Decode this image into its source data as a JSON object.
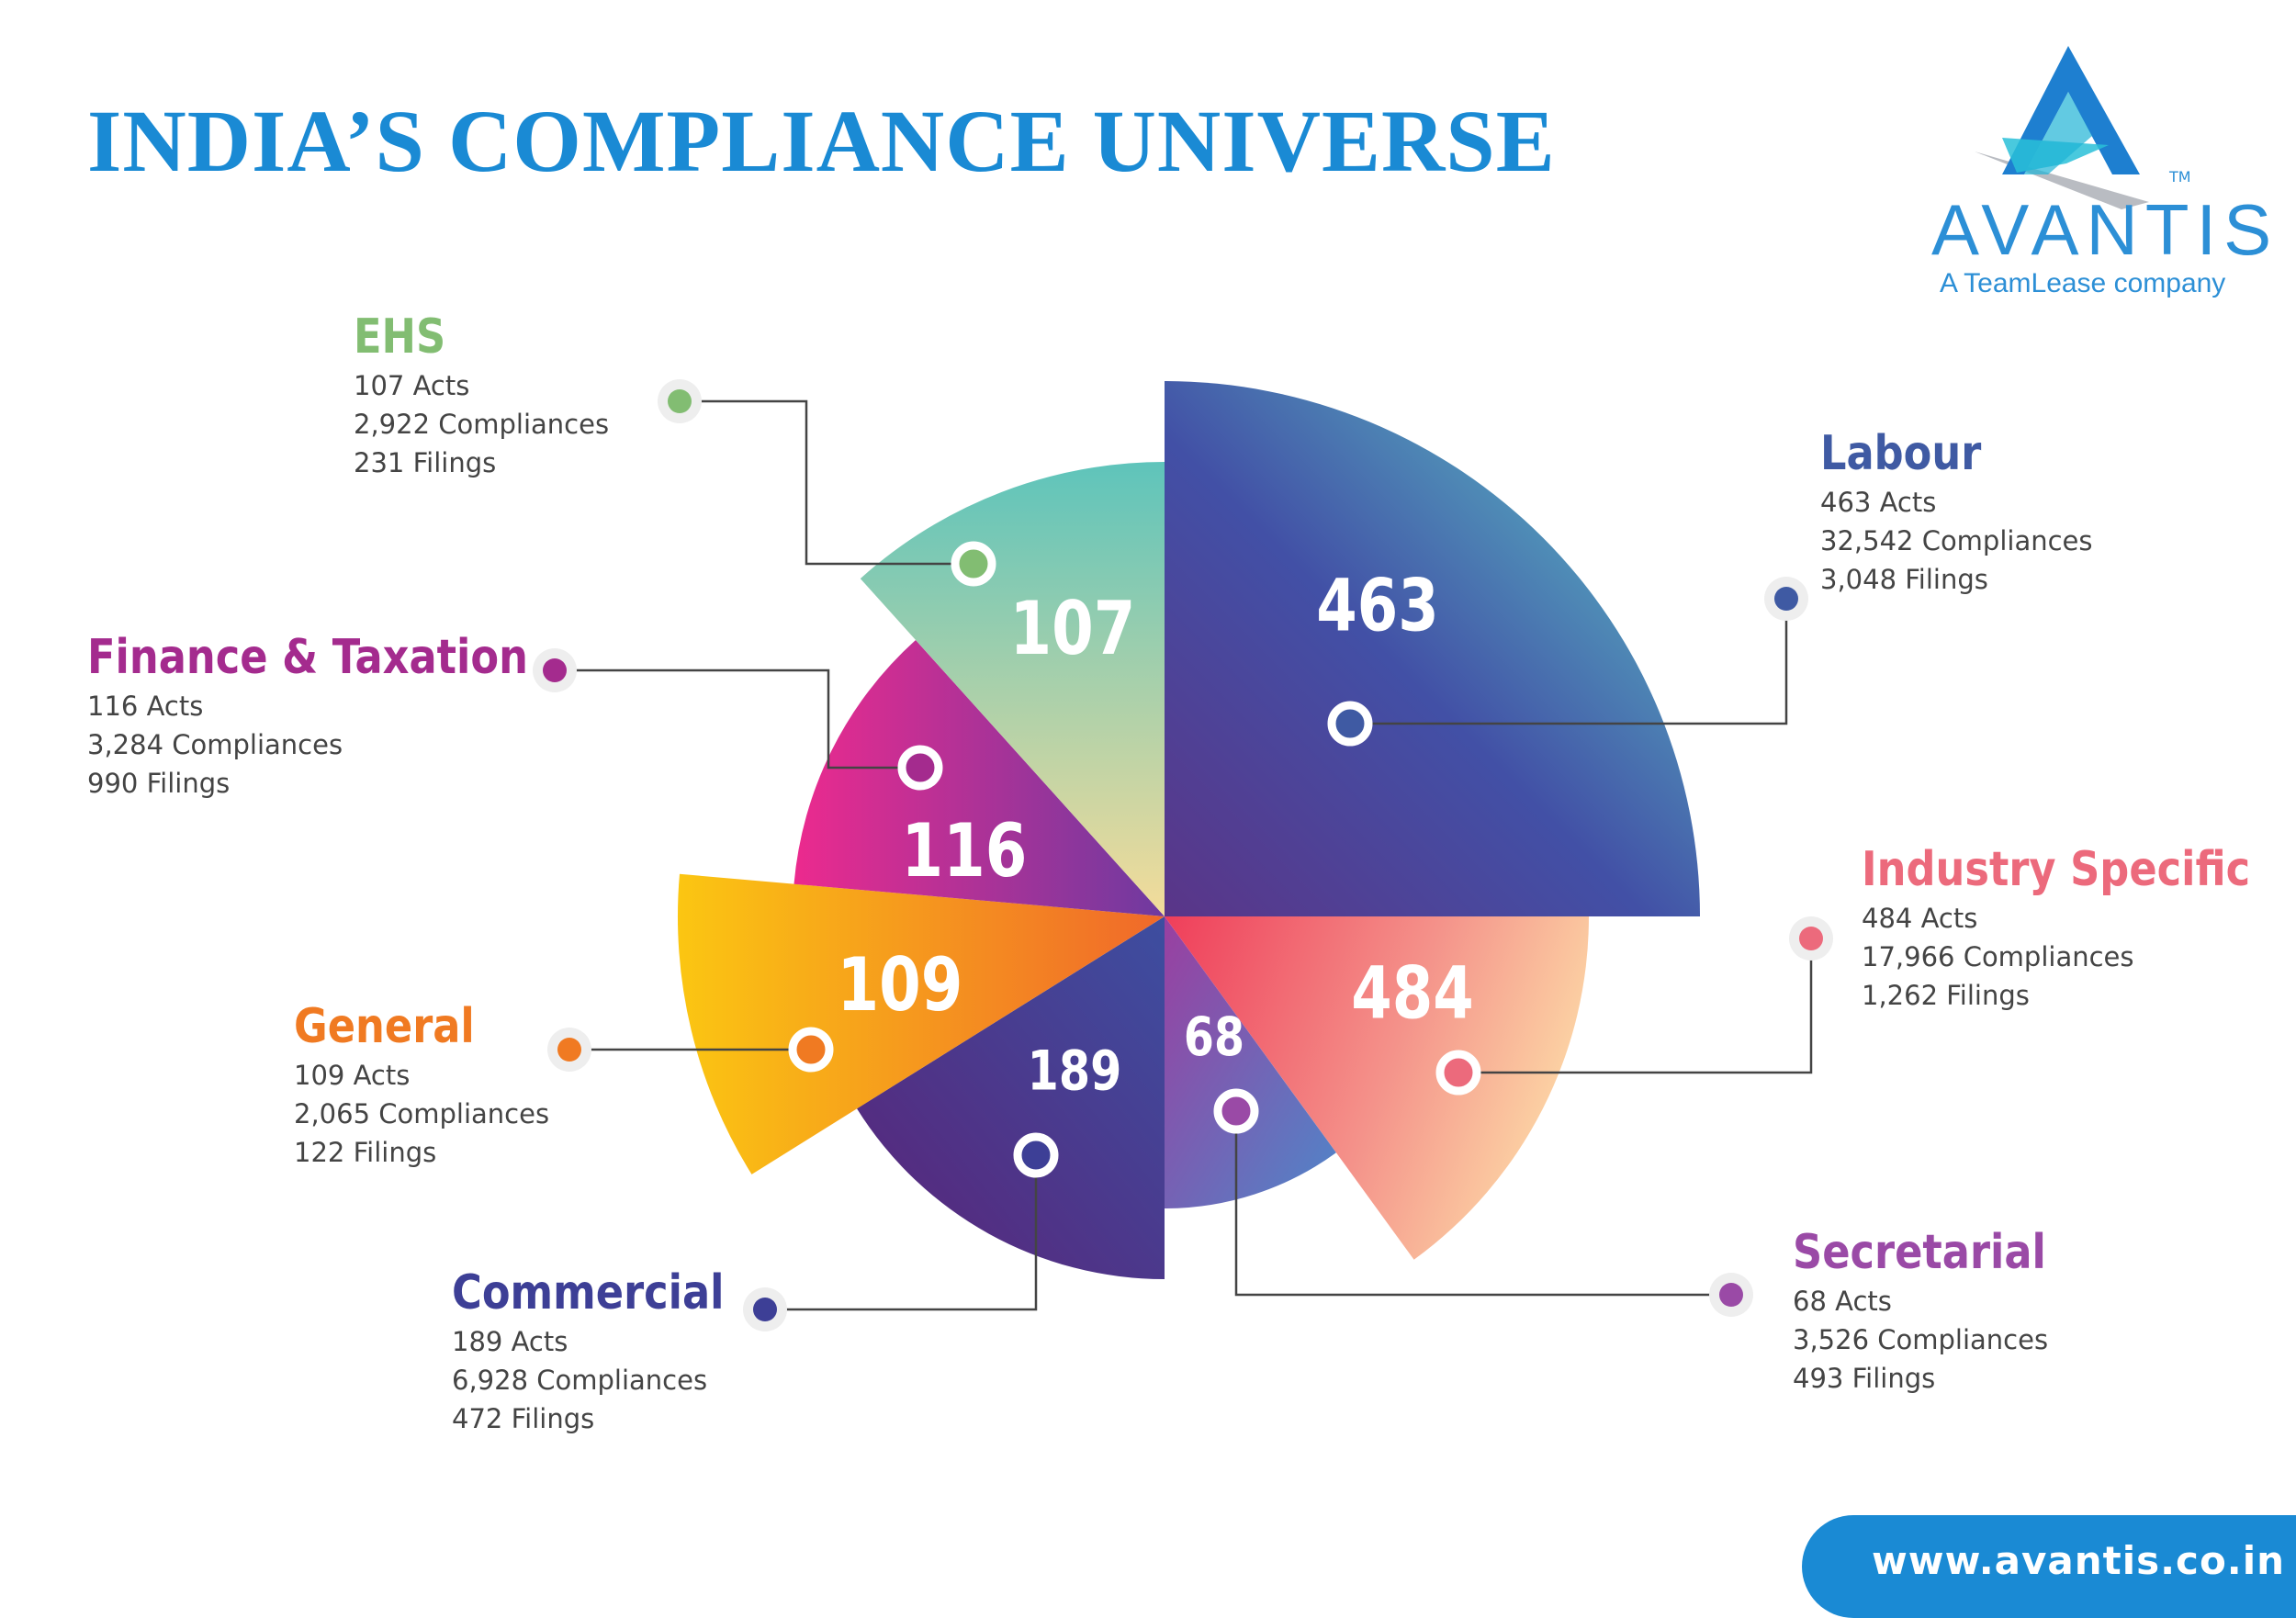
{
  "header": {
    "title": "INDIA’S COMPLIANCE UNIVERSE"
  },
  "logo": {
    "name": "AVANTIS",
    "tm": "TM",
    "tagline": "A TeamLease company"
  },
  "footer": {
    "website": "www.avantis.co.in"
  },
  "colors": {
    "title": "#1a8ad4",
    "brand": "#2c8fd6",
    "button": "#1a8ad4"
  },
  "chart_data": {
    "type": "pie",
    "title": "INDIA’S COMPLIANCE UNIVERSE",
    "value_field": "Acts",
    "categories": [
      {
        "name": "Labour",
        "acts": 463,
        "acts_line": "463 Acts",
        "compliances_line": "32,542 Compliances",
        "filings_line": "3,048 Filings",
        "color": "#3f5aa3"
      },
      {
        "name": "Industry Specific",
        "acts": 484,
        "acts_line": "484 Acts",
        "compliances_line": "17,966 Compliances",
        "filings_line": "1,262 Filings",
        "color": "#ec6a7c"
      },
      {
        "name": "Secretarial",
        "acts": 68,
        "acts_line": "68 Acts",
        "compliances_line": "3,526 Compliances",
        "filings_line": "493 Filings",
        "color": "#9a4aa6"
      },
      {
        "name": "Commercial",
        "acts": 189,
        "acts_line": "189 Acts",
        "compliances_line": "6,928 Compliances",
        "filings_line": "472 Filings",
        "color": "#3d3f96"
      },
      {
        "name": "General",
        "acts": 109,
        "acts_line": "109 Acts",
        "compliances_line": "2,065 Compliances",
        "filings_line": "122 Filings",
        "color": "#f07a22"
      },
      {
        "name": "Finance & Taxation",
        "acts": 116,
        "acts_line": "116 Acts",
        "compliances_line": "3,284 Compliances",
        "filings_line": "990 Filings",
        "color": "#a42b8e"
      },
      {
        "name": "EHS",
        "acts": 107,
        "acts_line": "107 Acts",
        "compliances_line": "2,922 Compliances",
        "filings_line": "231 Filings",
        "color": "#82bd72"
      }
    ]
  }
}
